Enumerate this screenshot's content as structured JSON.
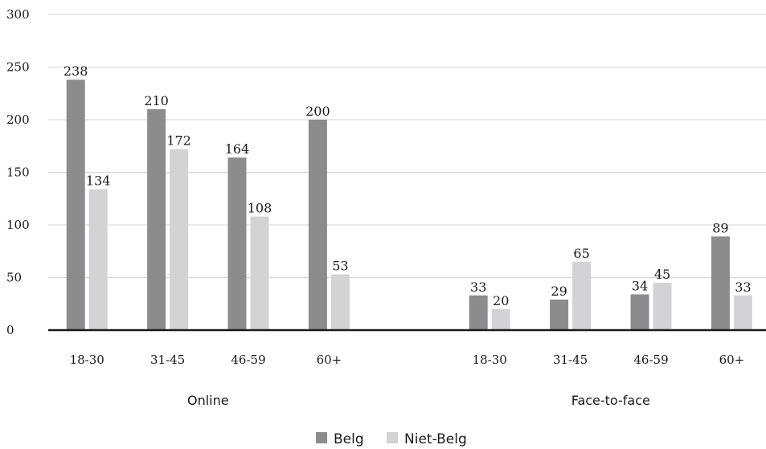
{
  "chart_data": {
    "type": "bar",
    "title": "",
    "xlabel": "",
    "ylabel": "",
    "ylim": [
      0,
      300
    ],
    "yticks": [
      0,
      50,
      100,
      150,
      200,
      250,
      300
    ],
    "grid": true,
    "legend_position": "bottom",
    "groups": [
      {
        "label": "Online",
        "categories": [
          "18-30",
          "31-45",
          "46-59",
          "60+"
        ]
      },
      {
        "label": "Face-to-face",
        "categories": [
          "18-30",
          "31-45",
          "46-59",
          "60+"
        ]
      }
    ],
    "series": [
      {
        "name": "Belg",
        "color": "#8c8c8e",
        "values": [
          238,
          210,
          164,
          200,
          33,
          29,
          34,
          89
        ]
      },
      {
        "name": "Niet-Belg",
        "color": "#d3d3d5",
        "values": [
          134,
          172,
          108,
          53,
          20,
          65,
          45,
          33
        ]
      }
    ]
  }
}
